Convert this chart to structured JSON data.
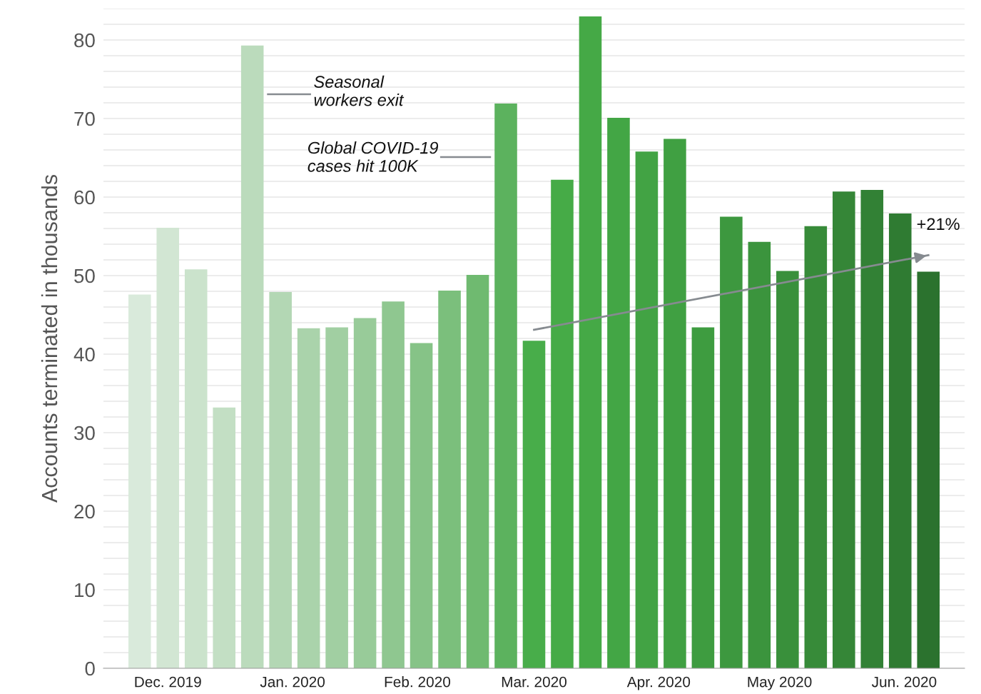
{
  "chart_data": {
    "type": "bar",
    "ylabel": "Accounts terminated in thousands",
    "x": [
      "2019-11-24",
      "2019-12-01",
      "2019-12-08",
      "2019-12-15",
      "2019-12-22",
      "2019-12-29",
      "2020-01-05",
      "2020-01-12",
      "2020-01-19",
      "2020-01-26",
      "2020-02-02",
      "2020-02-09",
      "2020-02-16",
      "2020-02-23",
      "2020-03-01",
      "2020-03-08",
      "2020-03-15",
      "2020-03-22",
      "2020-03-29",
      "2020-04-05",
      "2020-04-12",
      "2020-04-19",
      "2020-04-26",
      "2020-05-03",
      "2020-05-10",
      "2020-05-17",
      "2020-05-24",
      "2020-05-31",
      "2020-06-07"
    ],
    "values": [
      47.6,
      56.1,
      50.8,
      33.2,
      79.3,
      47.9,
      43.3,
      43.4,
      44.6,
      46.7,
      41.4,
      48.1,
      50.1,
      71.9,
      41.7,
      62.2,
      83.0,
      70.1,
      65.8,
      67.4,
      43.4,
      57.5,
      54.3,
      50.6,
      56.3,
      60.7,
      60.9,
      57.9,
      50.5
    ],
    "colors": [
      "#d9eadb",
      "#d2e6d3",
      "#cbe3cc",
      "#c3dfc4",
      "#bbdbbc",
      "#b3d7b4",
      "#aad3ab",
      "#a1cfa2",
      "#98cb99",
      "#8fc790",
      "#86c387",
      "#7bbf7c",
      "#6fba70",
      "#5cb25e",
      "#48ad4a",
      "#46ab47",
      "#45a946",
      "#43a645",
      "#42a344",
      "#40a042",
      "#3e9c40",
      "#3d983f",
      "#3b943d",
      "#39903b",
      "#378b39",
      "#358637",
      "#328135",
      "#2f7b32",
      "#2b722e"
    ],
    "series": [
      {
        "type": "line",
        "color": "#868b90",
        "x": [
          "2020-03-01",
          "2020-06-07"
        ],
        "values": [
          43.1,
          52.6
        ]
      }
    ],
    "annotations": [
      "Seasonal\nworkers exit",
      "Global COVID-19\ncases hit 100K",
      {
        "text": "+21%",
        "x": "2020-06-07",
        "y": 52.6
      }
    ],
    "xlim": [
      "2019-11-15",
      "2020-06-16"
    ],
    "xticks": [
      {
        "value": "2019-12-01",
        "label": "Dec. 2019"
      },
      {
        "value": "2020-01-01",
        "label": "Jan. 2020"
      },
      {
        "value": "2020-02-01",
        "label": "Feb. 2020"
      },
      {
        "value": "2020-03-01",
        "label": "Mar. 2020"
      },
      {
        "value": "2020-04-01",
        "label": "Apr. 2020"
      },
      {
        "value": "2020-05-01",
        "label": "May 2020"
      },
      {
        "value": "2020-06-01",
        "label": "Jun. 2020"
      }
    ],
    "ylim": [
      0,
      84
    ],
    "yticks": [
      0,
      {
        "value": 2,
        "label": null
      },
      {
        "value": 4,
        "label": null
      },
      {
        "value": 6,
        "label": null
      },
      {
        "value": 8,
        "label": null
      },
      10,
      {
        "value": 12,
        "label": null
      },
      {
        "value": 14,
        "label": null
      },
      {
        "value": 16,
        "label": null
      },
      {
        "value": 18,
        "label": null
      },
      20,
      {
        "value": 22,
        "label": null
      },
      {
        "value": 24,
        "label": null
      },
      {
        "value": 26,
        "label": null
      },
      {
        "value": 28,
        "label": null
      },
      30,
      {
        "value": 32,
        "label": null
      },
      {
        "value": 34,
        "label": null
      },
      {
        "value": 36,
        "label": null
      },
      {
        "value": 38,
        "label": null
      },
      40,
      {
        "value": 42,
        "label": null
      },
      {
        "value": 44,
        "label": null
      },
      {
        "value": 46,
        "label": null
      },
      {
        "value": 48,
        "label": null
      },
      50,
      {
        "value": 52,
        "label": null
      },
      {
        "value": 54,
        "label": null
      },
      {
        "value": 56,
        "label": null
      },
      {
        "value": 58,
        "label": null
      },
      60,
      {
        "value": 62,
        "label": null
      },
      {
        "value": 64,
        "label": null
      },
      {
        "value": 66,
        "label": null
      },
      {
        "value": 68,
        "label": null
      },
      70,
      {
        "value": 72,
        "label": null
      },
      {
        "value": 74,
        "label": null
      },
      {
        "value": 76,
        "label": null
      },
      {
        "value": 78,
        "label": null
      },
      80,
      {
        "value": 82,
        "label": null
      },
      {
        "value": 84,
        "label": null
      }
    ],
    "grid": "y",
    "legend": false
  }
}
